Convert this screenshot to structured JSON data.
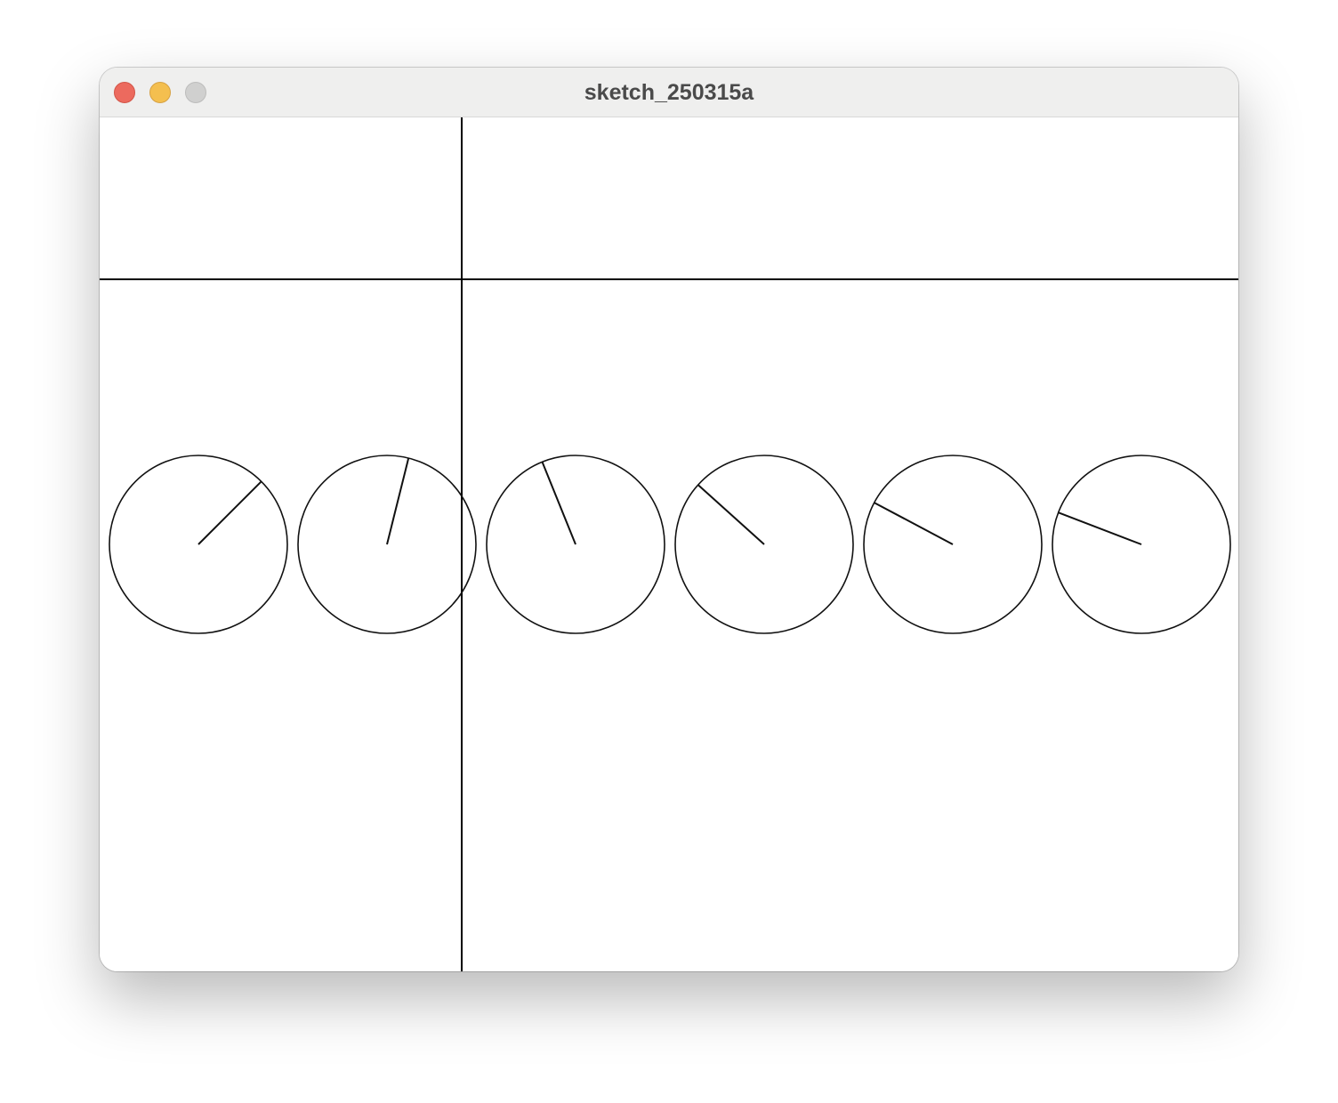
{
  "window": {
    "title": "sketch_250315a"
  },
  "sketch": {
    "background": "#ffffff",
    "stroke": "#111111",
    "dials": [
      {
        "needle_angle_deg": 45
      },
      {
        "needle_angle_deg": 76
      },
      {
        "needle_angle_deg": 112
      },
      {
        "needle_angle_deg": 138
      },
      {
        "needle_angle_deg": 152
      },
      {
        "needle_angle_deg": 159
      }
    ]
  }
}
